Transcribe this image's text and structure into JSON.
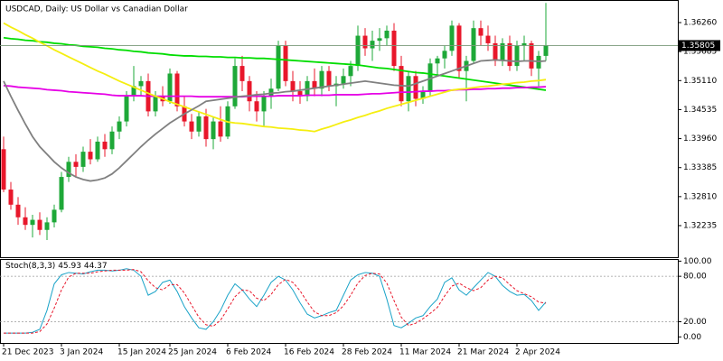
{
  "chart_data": [
    {
      "type": "candlestick",
      "title": "USDCAD, Daily:  US Dollar vs Canadian Dollar",
      "categories": [
        "21 Dec 2023",
        null,
        null,
        null,
        null,
        null,
        null,
        null,
        "3 Jan 2024",
        null,
        null,
        null,
        null,
        null,
        null,
        null,
        "15 Jan 2024",
        null,
        null,
        null,
        null,
        null,
        null,
        "25 Jan 2024",
        null,
        null,
        null,
        null,
        null,
        null,
        null,
        "6 Feb 2024",
        null,
        null,
        null,
        null,
        null,
        null,
        null,
        "16 Feb 2024",
        null,
        null,
        null,
        null,
        null,
        null,
        null,
        "28 Feb 2024",
        null,
        null,
        null,
        null,
        null,
        null,
        null,
        "11 Mar 2024",
        null,
        null,
        null,
        null,
        null,
        null,
        null,
        "21 Mar 2024",
        null,
        null,
        null,
        null,
        null,
        null,
        null,
        "2 Apr 2024",
        null,
        null,
        null,
        null
      ],
      "open": [
        1.3375,
        1.3295,
        1.3265,
        1.324,
        1.3225,
        1.3235,
        1.3215,
        1.323,
        1.3255,
        1.332,
        1.335,
        1.334,
        1.337,
        1.3355,
        1.339,
        1.3375,
        1.341,
        1.343,
        1.348,
        1.35,
        1.351,
        1.345,
        1.348,
        1.347,
        1.3525,
        1.346,
        1.343,
        1.341,
        1.344,
        1.3395,
        1.343,
        1.34,
        1.346,
        1.354,
        1.351,
        1.347,
        1.345,
        1.348,
        1.3495,
        1.358,
        1.351,
        1.349,
        1.348,
        1.351,
        1.3495,
        1.353,
        1.35,
        1.3505,
        1.352,
        1.354,
        1.36,
        1.3575,
        1.359,
        1.3595,
        1.361,
        1.354,
        1.347,
        1.352,
        1.3475,
        1.349,
        1.3545,
        1.3555,
        1.357,
        1.362,
        1.353,
        1.355,
        1.3615,
        1.36,
        1.3585,
        1.355,
        1.3585,
        1.354,
        1.358,
        1.3585,
        1.3535,
        1.356
      ],
      "high": [
        1.34,
        1.331,
        1.328,
        1.326,
        1.3245,
        1.325,
        1.324,
        1.3265,
        1.333,
        1.336,
        1.3365,
        1.338,
        1.3395,
        1.34,
        1.3405,
        1.342,
        1.344,
        1.349,
        1.354,
        1.352,
        1.3525,
        1.349,
        1.35,
        1.3535,
        1.353,
        1.348,
        1.3445,
        1.345,
        1.3455,
        1.344,
        1.346,
        1.347,
        1.3555,
        1.356,
        1.352,
        1.349,
        1.349,
        1.3515,
        1.359,
        1.359,
        1.353,
        1.351,
        1.352,
        1.3535,
        1.354,
        1.354,
        1.352,
        1.3535,
        1.355,
        1.362,
        1.3615,
        1.361,
        1.3615,
        1.362,
        1.3625,
        1.356,
        1.353,
        1.353,
        1.35,
        1.3555,
        1.356,
        1.358,
        1.363,
        1.3625,
        1.356,
        1.363,
        1.363,
        1.362,
        1.36,
        1.3595,
        1.36,
        1.359,
        1.36,
        1.359,
        1.357,
        1.3665
      ],
      "low": [
        1.329,
        1.3255,
        1.3225,
        1.3215,
        1.32,
        1.3205,
        1.3195,
        1.322,
        1.325,
        1.331,
        1.332,
        1.333,
        1.3345,
        1.335,
        1.336,
        1.3365,
        1.3395,
        1.342,
        1.347,
        1.348,
        1.344,
        1.344,
        1.346,
        1.3465,
        1.345,
        1.342,
        1.3395,
        1.34,
        1.338,
        1.3375,
        1.339,
        1.3395,
        1.3455,
        1.349,
        1.345,
        1.343,
        1.342,
        1.3455,
        1.349,
        1.35,
        1.347,
        1.3465,
        1.347,
        1.348,
        1.348,
        1.349,
        1.346,
        1.3495,
        1.35,
        1.353,
        1.356,
        1.355,
        1.357,
        1.358,
        1.353,
        1.346,
        1.345,
        1.346,
        1.3465,
        1.348,
        1.352,
        1.3535,
        1.356,
        1.3515,
        1.347,
        1.3545,
        1.358,
        1.357,
        1.354,
        1.354,
        1.353,
        1.353,
        1.355,
        1.352,
        1.35,
        1.355
      ],
      "close": [
        1.3295,
        1.3265,
        1.324,
        1.3225,
        1.3235,
        1.3215,
        1.323,
        1.3255,
        1.332,
        1.335,
        1.334,
        1.337,
        1.3355,
        1.339,
        1.3375,
        1.341,
        1.343,
        1.348,
        1.35,
        1.351,
        1.345,
        1.348,
        1.347,
        1.3525,
        1.346,
        1.343,
        1.341,
        1.344,
        1.3395,
        1.343,
        1.34,
        1.346,
        1.354,
        1.351,
        1.347,
        1.345,
        1.348,
        1.3495,
        1.358,
        1.351,
        1.349,
        1.348,
        1.351,
        1.3495,
        1.353,
        1.35,
        1.3505,
        1.352,
        1.354,
        1.36,
        1.3575,
        1.359,
        1.3595,
        1.361,
        1.354,
        1.347,
        1.352,
        1.3475,
        1.349,
        1.3545,
        1.3555,
        1.357,
        1.362,
        1.353,
        1.355,
        1.3615,
        1.36,
        1.3585,
        1.355,
        1.3585,
        1.354,
        1.358,
        1.3585,
        1.3535,
        1.356,
        1.35805
      ],
      "up_color": "#1ea838",
      "down_color": "#e8172b",
      "lines": [
        {
          "color": "#00dd00",
          "values": [
            1.3596,
            1.3594,
            1.3593,
            1.3591,
            1.359,
            1.3588,
            1.3587,
            1.3585,
            1.3584,
            1.3582,
            1.3581,
            1.3579,
            1.3578,
            1.3577,
            1.3575,
            1.3574,
            1.3572,
            1.3571,
            1.3569,
            1.3568,
            1.3566,
            1.3565,
            1.3564,
            1.3562,
            1.3561,
            1.356,
            1.356,
            1.3559,
            1.3559,
            1.3558,
            1.3558,
            1.3557,
            1.3557,
            1.3556,
            1.3556,
            1.3555,
            1.3555,
            1.3554,
            1.3553,
            1.3552,
            1.3551,
            1.355,
            1.3549,
            1.3548,
            1.3547,
            1.3546,
            1.3545,
            1.3544,
            1.3543,
            1.3542,
            1.354,
            1.3538,
            1.3536,
            1.3535,
            1.3533,
            1.3531,
            1.3529,
            1.3527,
            1.3526,
            1.3524,
            1.3522,
            1.352,
            1.3518,
            1.3516,
            1.3514,
            1.3512,
            1.351,
            1.3508,
            1.3506,
            1.3504,
            1.3502,
            1.35,
            1.3498,
            1.3496,
            1.3494,
            1.3492
          ]
        },
        {
          "color": "#e600e6",
          "values": [
            1.3501,
            1.35,
            1.3498,
            1.3497,
            1.3496,
            1.3495,
            1.3493,
            1.3492,
            1.3491,
            1.3489,
            1.3488,
            1.3487,
            1.3486,
            1.3485,
            1.3484,
            1.3482,
            1.3481,
            1.3481,
            1.3481,
            1.3481,
            1.348,
            1.348,
            1.348,
            1.348,
            1.348,
            1.348,
            1.348,
            1.3479,
            1.3479,
            1.3479,
            1.3479,
            1.3479,
            1.3479,
            1.3479,
            1.348,
            1.348,
            1.348,
            1.348,
            1.3481,
            1.3481,
            1.3481,
            1.3481,
            1.3482,
            1.3482,
            1.3482,
            1.3482,
            1.3483,
            1.3483,
            1.3483,
            1.3483,
            1.3484,
            1.3485,
            1.3485,
            1.3486,
            1.3487,
            1.3488,
            1.3488,
            1.3489,
            1.349,
            1.349,
            1.3491,
            1.3491,
            1.3492,
            1.3493,
            1.3493,
            1.3494,
            1.3494,
            1.3495,
            1.3495,
            1.3496,
            1.3496,
            1.3497,
            1.3497,
            1.3498,
            1.3498,
            1.3499
          ]
        },
        {
          "color": "#f5ee10",
          "values": [
            1.3625,
            1.3617,
            1.361,
            1.3602,
            1.3595,
            1.3587,
            1.358,
            1.3572,
            1.3565,
            1.3558,
            1.3551,
            1.3544,
            1.3537,
            1.353,
            1.3524,
            1.3517,
            1.351,
            1.3504,
            1.3498,
            1.3492,
            1.3486,
            1.348,
            1.3475,
            1.3469,
            1.3464,
            1.3459,
            1.3454,
            1.3449,
            1.3444,
            1.3439,
            1.3434,
            1.3429,
            1.3427,
            1.3426,
            1.3424,
            1.3422,
            1.342,
            1.3419,
            1.3417,
            1.3416,
            1.3415,
            1.3413,
            1.3412,
            1.341,
            1.3415,
            1.3419,
            1.3424,
            1.3429,
            1.3433,
            1.3438,
            1.3442,
            1.3447,
            1.3451,
            1.3456,
            1.346,
            1.3464,
            1.3468,
            1.3472,
            1.3476,
            1.348,
            1.3484,
            1.3488,
            1.3492,
            1.3494,
            1.3495,
            1.3497,
            1.3499,
            1.35,
            1.3502,
            1.3504,
            1.3505,
            1.3507,
            1.3508,
            1.351,
            1.3511,
            1.3513
          ]
        },
        {
          "color": "#808080",
          "values": [
            1.351,
            1.348,
            1.3452,
            1.3425,
            1.34,
            1.338,
            1.3365,
            1.335,
            1.3338,
            1.3328,
            1.332,
            1.3315,
            1.3312,
            1.3314,
            1.3318,
            1.3326,
            1.3338,
            1.3352,
            1.3366,
            1.338,
            1.3393,
            1.3405,
            1.3416,
            1.3427,
            1.3436,
            1.3445,
            1.3453,
            1.3461,
            1.347,
            1.3472,
            1.3474,
            1.3476,
            1.3478,
            1.348,
            1.3481,
            1.3483,
            1.3484,
            1.3486,
            1.3487,
            1.3489,
            1.349,
            1.3492,
            1.3494,
            1.3496,
            1.3498,
            1.35,
            1.3502,
            1.3504,
            1.3506,
            1.3508,
            1.351,
            1.3508,
            1.3506,
            1.3504,
            1.3502,
            1.3501,
            1.35,
            1.3505,
            1.351,
            1.3515,
            1.352,
            1.3525,
            1.353,
            1.3535,
            1.354,
            1.3545,
            1.355,
            1.3551,
            1.3552,
            1.3551,
            1.355,
            1.3549,
            1.355,
            1.355,
            1.3549,
            1.355
          ]
        }
      ],
      "current_price": 1.35805,
      "ylim": [
        1.31609,
        1.36654
      ],
      "yticks": [
        {
          "value": 1.3626,
          "label": "1.36260"
        },
        1.35685,
        {
          "value": 1.3511,
          "label": "1.35110"
        },
        1.34535,
        {
          "value": 1.3396,
          "label": "1.33960"
        },
        1.33385,
        {
          "value": 1.3281,
          "label": "1.32810"
        },
        1.32235
      ]
    },
    {
      "type": "line",
      "title": "Stoch(8,3,3)",
      "series": [
        {
          "color": "#1aa3c8",
          "dashed": false,
          "values": [
            5,
            5,
            5,
            5,
            6,
            10,
            35,
            70,
            82,
            85,
            84,
            83,
            86,
            88,
            88,
            87,
            88,
            90,
            88,
            80,
            55,
            60,
            72,
            75,
            60,
            40,
            25,
            12,
            10,
            20,
            35,
            55,
            70,
            62,
            50,
            40,
            55,
            72,
            80,
            75,
            62,
            45,
            30,
            25,
            28,
            32,
            35,
            55,
            75,
            82,
            85,
            84,
            80,
            50,
            15,
            12,
            18,
            25,
            28,
            40,
            50,
            72,
            78,
            62,
            55,
            65,
            75,
            85,
            80,
            68,
            60,
            55,
            56,
            48,
            35,
            45.93
          ]
        },
        {
          "color": "#e8172b",
          "dashed": true,
          "values": [
            5,
            5,
            5,
            5,
            5,
            7,
            17,
            38,
            62,
            79,
            84,
            84,
            84,
            86,
            87,
            88,
            88,
            88,
            89,
            86,
            74,
            65,
            62,
            69,
            69,
            58,
            42,
            26,
            16,
            14,
            22,
            37,
            53,
            62,
            61,
            51,
            48,
            56,
            69,
            76,
            72,
            61,
            46,
            33,
            28,
            28,
            32,
            41,
            55,
            71,
            81,
            84,
            83,
            71,
            48,
            26,
            15,
            18,
            24,
            31,
            39,
            54,
            67,
            71,
            65,
            61,
            65,
            75,
            80,
            78,
            69,
            61,
            57,
            53,
            46,
            44.37
          ]
        }
      ],
      "ylim": [
        -8,
        104
      ],
      "yticks": [
        {
          "value": 100,
          "label": "100.00"
        },
        {
          "value": 80,
          "label": "80.00"
        },
        {
          "value": 20,
          "label": "20.00"
        },
        {
          "value": 0,
          "label": "0.00"
        }
      ]
    }
  ]
}
